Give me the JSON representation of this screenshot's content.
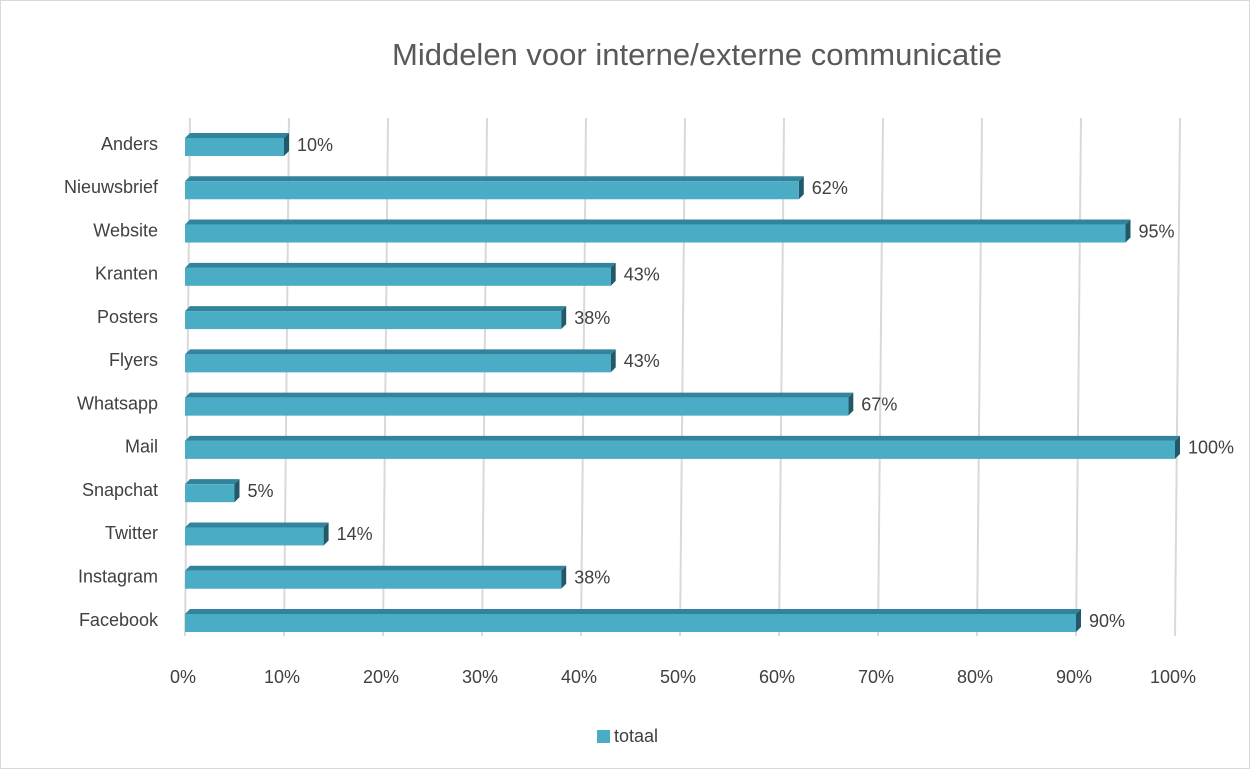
{
  "chart_data": {
    "type": "bar",
    "orientation": "horizontal",
    "title": "Middelen voor interne/externe communicatie",
    "categories": [
      "Anders",
      "Nieuwsbrief",
      "Website",
      "Kranten",
      "Posters",
      "Flyers",
      "Whatsapp",
      "Mail",
      "Snapchat",
      "Twitter",
      "Instagram",
      "Facebook"
    ],
    "series": [
      {
        "name": "totaal",
        "color": "#4bacc6",
        "values": [
          10,
          62,
          95,
          43,
          38,
          43,
          67,
          100,
          5,
          14,
          38,
          90
        ],
        "value_labels": [
          "10%",
          "62%",
          "95%",
          "43%",
          "38%",
          "43%",
          "67%",
          "100%",
          "5%",
          "14%",
          "38%",
          "90%"
        ]
      }
    ],
    "xlim": [
      0,
      100
    ],
    "xticks": [
      {
        "value": 0,
        "label": "0%"
      },
      {
        "value": 10,
        "label": "10%"
      },
      {
        "value": 20,
        "label": "20%"
      },
      {
        "value": 30,
        "label": "30%"
      },
      {
        "value": 40,
        "label": "40%"
      },
      {
        "value": 50,
        "label": "50%"
      },
      {
        "value": 60,
        "label": "60%"
      },
      {
        "value": 70,
        "label": "70%"
      },
      {
        "value": 80,
        "label": "80%"
      },
      {
        "value": 90,
        "label": "90%"
      },
      {
        "value": 100,
        "label": "100%"
      }
    ],
    "grid": true,
    "legend": "bottom"
  }
}
